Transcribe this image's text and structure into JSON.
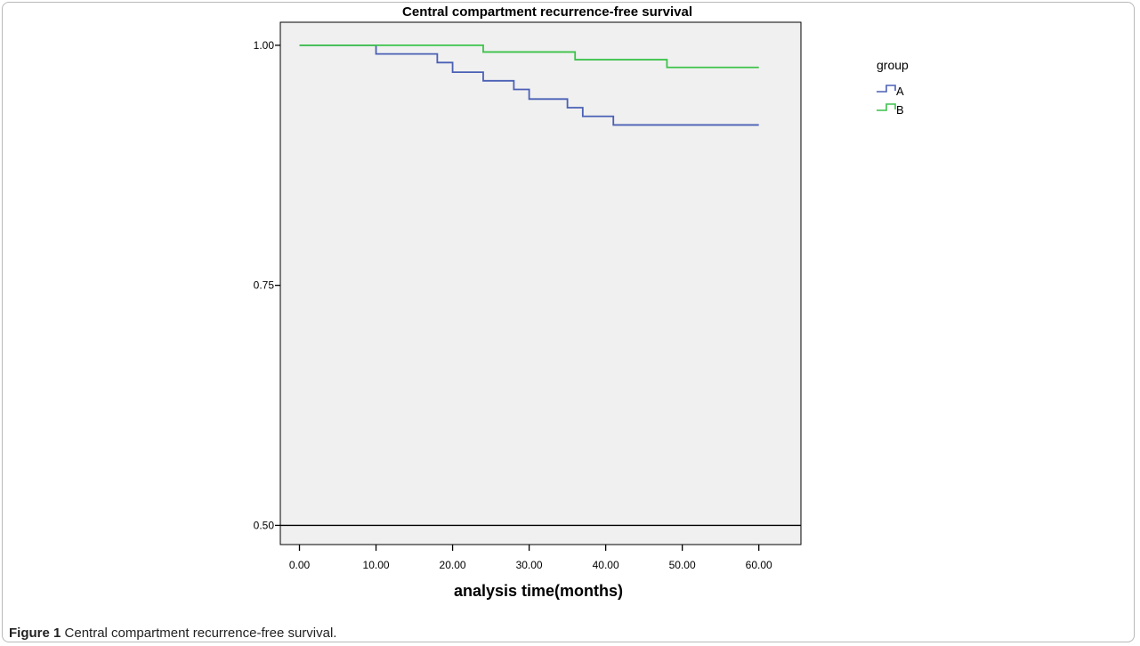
{
  "figure": {
    "caption_label": "Figure 1",
    "caption_text": "Central compartment recurrence-free survival."
  },
  "chart_data": {
    "type": "line",
    "title": "Central compartment recurrence-free survival",
    "xlabel": "analysis time(months)",
    "ylabel": "",
    "xlim": [
      -2.5,
      65.5
    ],
    "ylim": [
      0.48,
      1.024
    ],
    "xticks": [
      0,
      10,
      20,
      30,
      40,
      50,
      60
    ],
    "xtick_labels": [
      "0.00",
      "10.00",
      "20.00",
      "30.00",
      "40.00",
      "50.00",
      "60.00"
    ],
    "yticks": [
      0.5,
      0.75,
      1.0
    ],
    "ytick_labels": [
      "0.50",
      "0.75",
      "1.00"
    ],
    "reference_line": 0.5,
    "legend": {
      "title": "group",
      "position": "right"
    },
    "series": [
      {
        "name": "A",
        "color": "#4a60b5",
        "steps": [
          [
            0,
            1.0
          ],
          [
            10,
            0.991
          ],
          [
            18,
            0.982
          ],
          [
            20,
            0.972
          ],
          [
            24,
            0.963
          ],
          [
            28,
            0.954
          ],
          [
            30,
            0.944
          ],
          [
            35,
            0.935
          ],
          [
            37,
            0.926
          ],
          [
            41,
            0.917
          ],
          [
            60,
            0.917
          ]
        ]
      },
      {
        "name": "B",
        "color": "#3cc24a",
        "steps": [
          [
            0,
            1.0
          ],
          [
            24,
            0.993
          ],
          [
            36,
            0.985
          ],
          [
            48,
            0.977
          ],
          [
            60,
            0.977
          ]
        ]
      }
    ],
    "background": "#f0f0f0",
    "grid": false
  }
}
